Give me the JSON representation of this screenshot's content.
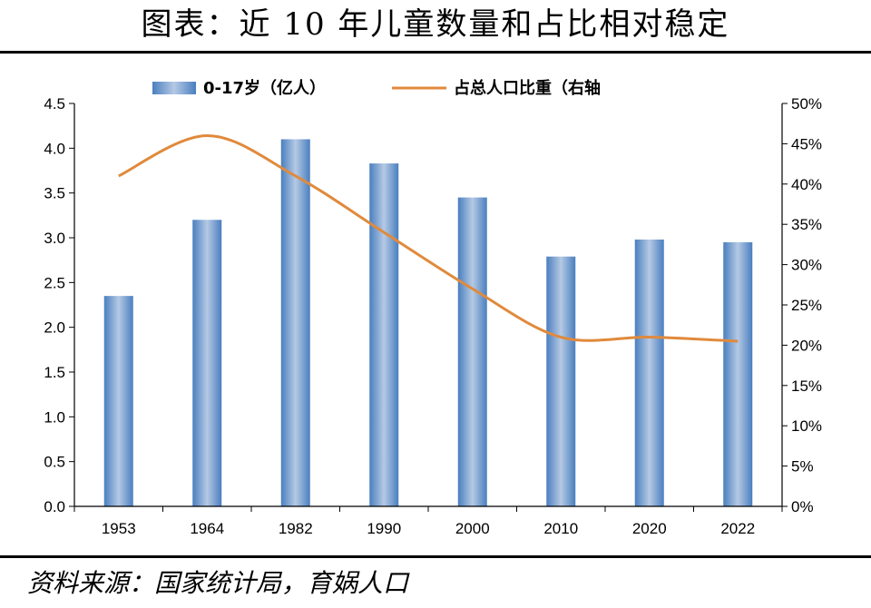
{
  "title": "图表：近 10 年儿童数量和占比相对稳定",
  "source": "资料来源：国家统计局，育娲人口",
  "colors": {
    "bar": "#4a7fbf",
    "bar_light": "#b5c9e4",
    "line": "#e08a3c"
  },
  "chart_data": {
    "type": "bar",
    "categories": [
      "1953",
      "1964",
      "1982",
      "1990",
      "2000",
      "2010",
      "2020",
      "2022"
    ],
    "series": [
      {
        "name": "0-17岁（亿人）",
        "type": "bar",
        "axis": "left",
        "values": [
          2.35,
          3.2,
          4.1,
          3.83,
          3.45,
          2.79,
          2.98,
          2.95
        ]
      },
      {
        "name": "占总人口比重（右轴",
        "type": "line",
        "axis": "right",
        "values": [
          0.41,
          0.46,
          0.41,
          0.34,
          0.27,
          0.21,
          0.21,
          0.205
        ]
      }
    ],
    "left_axis": {
      "ylim": [
        0,
        4.5
      ],
      "ticks": [
        "0.0",
        "0.5",
        "1.0",
        "1.5",
        "2.0",
        "2.5",
        "3.0",
        "3.5",
        "4.0",
        "4.5"
      ]
    },
    "right_axis": {
      "ylim": [
        0,
        0.5
      ],
      "ticks": [
        "0%",
        "5%",
        "10%",
        "15%",
        "20%",
        "25%",
        "30%",
        "35%",
        "40%",
        "45%",
        "50%"
      ]
    },
    "legend_position": "top"
  }
}
